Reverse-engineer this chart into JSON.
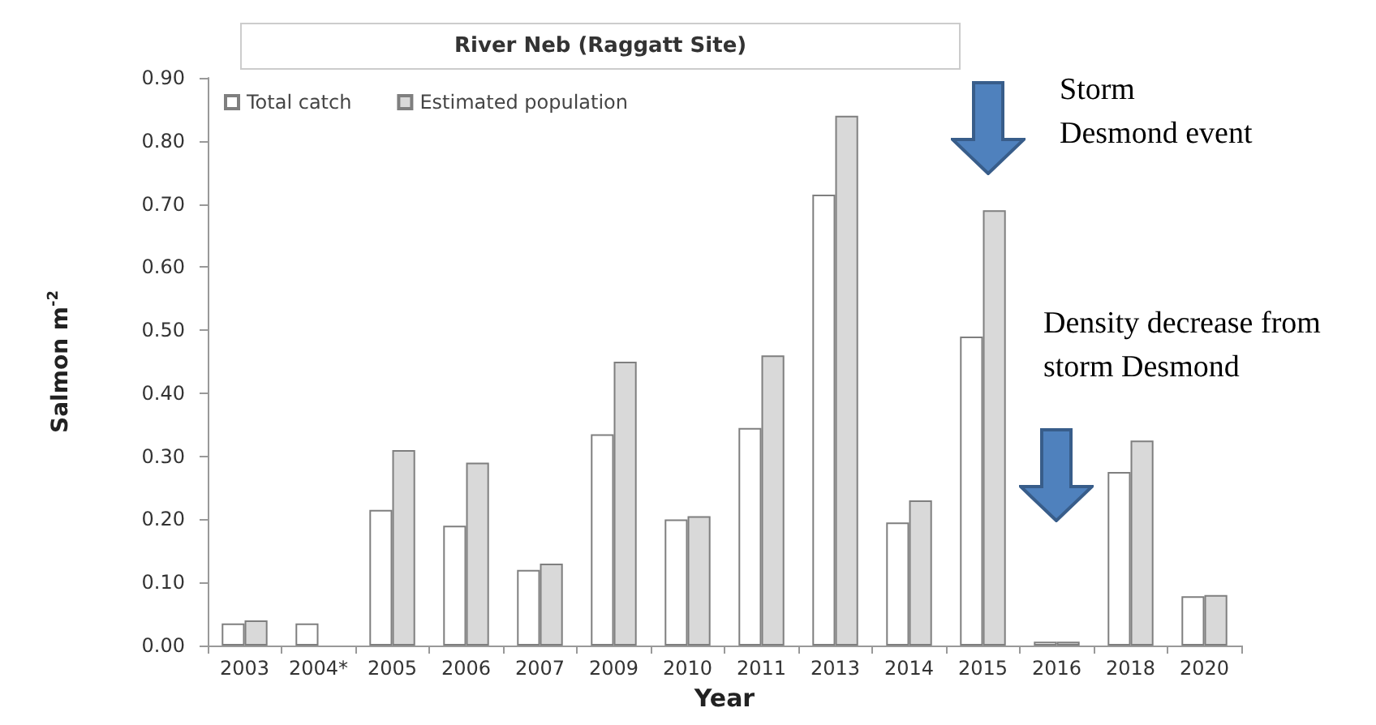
{
  "chart_data": {
    "type": "bar",
    "title": "River Neb (Raggatt Site)",
    "xlabel": "Year",
    "ylabel": "Salmon m$^{-2}$",
    "categories": [
      "2003",
      "2004*",
      "2005",
      "2006",
      "2007",
      "2009",
      "2010",
      "2011",
      "2013",
      "2014",
      "2015",
      "2016",
      "2018",
      "2020"
    ],
    "series": [
      {
        "name": "Total catch",
        "color": "#ffffff",
        "values": [
          0.035,
          0.035,
          0.215,
          0.19,
          0.12,
          0.335,
          0.2,
          0.345,
          0.715,
          0.195,
          0.49,
          0.006,
          0.275,
          0.078
        ]
      },
      {
        "name": "Estimated population",
        "color": "#d9d9d9",
        "values": [
          0.04,
          null,
          0.31,
          0.29,
          0.13,
          0.45,
          0.205,
          0.46,
          0.84,
          0.23,
          0.69,
          0.006,
          0.325,
          0.08
        ]
      }
    ],
    "ylim": [
      0,
      0.9
    ],
    "yticks": [
      {
        "value": 0,
        "label": "0.00"
      },
      {
        "value": 0.1,
        "label": "0.10"
      },
      {
        "value": 0.2,
        "label": "0.20"
      },
      {
        "value": 0.3,
        "label": "0.30"
      },
      {
        "value": 0.4,
        "label": "0.40"
      },
      {
        "value": 0.5,
        "label": "0.50"
      },
      {
        "value": 0.6,
        "label": "0.60"
      },
      {
        "value": 0.7,
        "label": "0.70"
      },
      {
        "value": 0.8,
        "label": "0.80"
      },
      {
        "value": 0.9,
        "label": "0.90"
      }
    ],
    "grid": false,
    "legend": "top left",
    "annotations": [
      "Storm\nDesmond event",
      "Density decrease from\nstorm Desmond"
    ]
  }
}
